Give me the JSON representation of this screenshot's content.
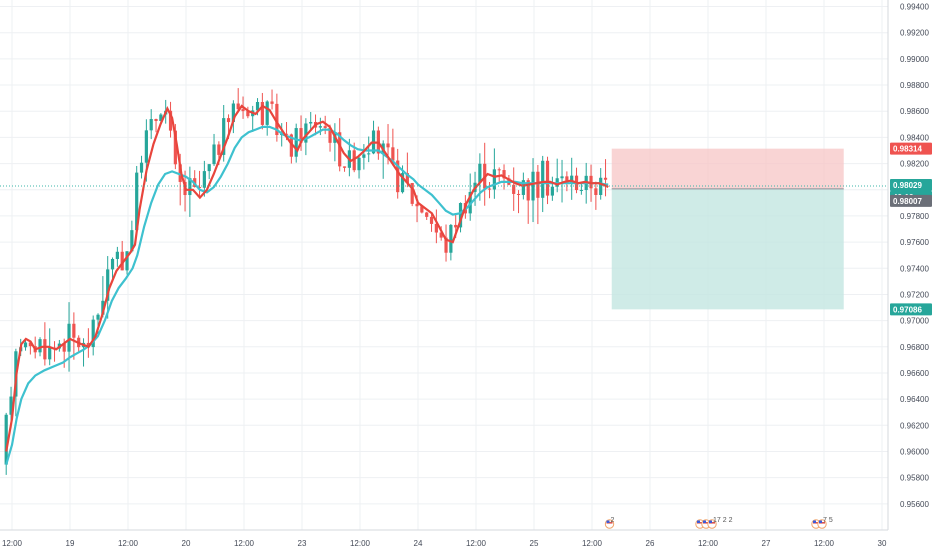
{
  "chart_data": {
    "type": "candlestick",
    "price_range": [
      0.954,
      0.9945
    ],
    "y_ticks": [
      "0.99400",
      "0.99200",
      "0.99000",
      "0.98800",
      "0.98600",
      "0.98400",
      "0.98200",
      "0.98000",
      "0.97800",
      "0.97600",
      "0.97400",
      "0.97200",
      "0.97000",
      "0.96800",
      "0.96600",
      "0.96400",
      "0.96200",
      "0.96000",
      "0.95800",
      "0.95600"
    ],
    "x_ticks": [
      {
        "label": "12:00",
        "t": -0.5
      },
      {
        "label": "19",
        "t": 0
      },
      {
        "label": "12:00",
        "t": 0.5
      },
      {
        "label": "20",
        "t": 1
      },
      {
        "label": "12:00",
        "t": 1.5
      },
      {
        "label": "23",
        "t": 2
      },
      {
        "label": "12:00",
        "t": 2.5
      },
      {
        "label": "24",
        "t": 3
      },
      {
        "label": "12:00",
        "t": 3.5
      },
      {
        "label": "25",
        "t": 4
      },
      {
        "label": "12:00",
        "t": 4.5
      },
      {
        "label": "26",
        "t": 5
      },
      {
        "label": "12:00",
        "t": 5.5
      },
      {
        "label": "27",
        "t": 6
      },
      {
        "label": "12:00",
        "t": 6.5
      },
      {
        "label": "30",
        "t": 7
      }
    ],
    "price_path": [
      [
        -0.55,
        0.959
      ],
      [
        -0.5,
        0.962
      ],
      [
        -0.45,
        0.967
      ],
      [
        -0.42,
        0.9686
      ],
      [
        -0.38,
        0.9686
      ],
      [
        -0.34,
        0.968
      ],
      [
        -0.3,
        0.9676
      ],
      [
        -0.24,
        0.9685
      ],
      [
        -0.18,
        0.968
      ],
      [
        -0.12,
        0.9676
      ],
      [
        -0.06,
        0.9684
      ],
      [
        0.0,
        0.9688
      ],
      [
        0.05,
        0.9684
      ],
      [
        0.1,
        0.9685
      ],
      [
        0.16,
        0.9678
      ],
      [
        0.22,
        0.969
      ],
      [
        0.28,
        0.9705
      ],
      [
        0.34,
        0.973
      ],
      [
        0.4,
        0.9742
      ],
      [
        0.46,
        0.9748
      ],
      [
        0.52,
        0.9752
      ],
      [
        0.56,
        0.9758
      ],
      [
        0.6,
        0.9798
      ],
      [
        0.66,
        0.983
      ],
      [
        0.72,
        0.9843
      ],
      [
        0.78,
        0.9855
      ],
      [
        0.84,
        0.9866
      ],
      [
        0.88,
        0.9855
      ],
      [
        0.92,
        0.983
      ],
      [
        0.96,
        0.981
      ],
      [
        1.0,
        0.98
      ],
      [
        1.06,
        0.98
      ],
      [
        1.12,
        0.9795
      ],
      [
        1.18,
        0.9805
      ],
      [
        1.24,
        0.9814
      ],
      [
        1.3,
        0.983
      ],
      [
        1.36,
        0.9845
      ],
      [
        1.42,
        0.986
      ],
      [
        1.48,
        0.9866
      ],
      [
        1.54,
        0.9862
      ],
      [
        1.6,
        0.986
      ],
      [
        1.66,
        0.9865
      ],
      [
        1.72,
        0.9862
      ],
      [
        1.78,
        0.9852
      ],
      [
        1.84,
        0.9846
      ],
      [
        1.9,
        0.9836
      ],
      [
        1.96,
        0.9828
      ],
      [
        2.0,
        0.984
      ],
      [
        2.06,
        0.9845
      ],
      [
        2.12,
        0.985
      ],
      [
        2.18,
        0.9852
      ],
      [
        2.24,
        0.9848
      ],
      [
        2.3,
        0.9838
      ],
      [
        2.36,
        0.9828
      ],
      [
        2.42,
        0.982
      ],
      [
        2.48,
        0.9825
      ],
      [
        2.54,
        0.983
      ],
      [
        2.6,
        0.9838
      ],
      [
        2.66,
        0.9836
      ],
      [
        2.72,
        0.9828
      ],
      [
        2.78,
        0.982
      ],
      [
        2.84,
        0.9812
      ],
      [
        2.9,
        0.9807
      ],
      [
        2.96,
        0.98
      ],
      [
        3.0,
        0.979
      ],
      [
        3.06,
        0.9786
      ],
      [
        3.12,
        0.9782
      ],
      [
        3.18,
        0.9772
      ],
      [
        3.24,
        0.976
      ],
      [
        3.3,
        0.976
      ],
      [
        3.36,
        0.9776
      ],
      [
        3.42,
        0.979
      ],
      [
        3.48,
        0.98
      ],
      [
        3.54,
        0.9808
      ],
      [
        3.6,
        0.9815
      ],
      [
        3.66,
        0.981
      ],
      [
        3.72,
        0.9812
      ],
      [
        3.78,
        0.9808
      ],
      [
        3.84,
        0.9804
      ],
      [
        3.9,
        0.9803
      ],
      [
        3.96,
        0.9805
      ],
      [
        4.02,
        0.9805
      ],
      [
        4.08,
        0.9806
      ],
      [
        4.14,
        0.9807
      ],
      [
        4.2,
        0.9803
      ],
      [
        4.26,
        0.9806
      ],
      [
        4.32,
        0.9808
      ],
      [
        4.38,
        0.9805
      ],
      [
        4.44,
        0.9806
      ],
      [
        4.5,
        0.9804
      ],
      [
        4.56,
        0.9806
      ],
      [
        4.62,
        0.9803
      ],
      [
        4.64,
        0.9802
      ]
    ],
    "ma_fast": [
      [
        -0.55,
        0.96
      ],
      [
        -0.5,
        0.9625
      ],
      [
        -0.46,
        0.966
      ],
      [
        -0.42,
        0.9682
      ],
      [
        -0.38,
        0.9686
      ],
      [
        -0.34,
        0.9684
      ],
      [
        -0.3,
        0.9678
      ],
      [
        -0.24,
        0.968
      ],
      [
        -0.18,
        0.968
      ],
      [
        -0.12,
        0.9678
      ],
      [
        -0.06,
        0.9682
      ],
      [
        0.0,
        0.9686
      ],
      [
        0.05,
        0.9684
      ],
      [
        0.1,
        0.9682
      ],
      [
        0.16,
        0.968
      ],
      [
        0.22,
        0.9688
      ],
      [
        0.28,
        0.9705
      ],
      [
        0.34,
        0.9725
      ],
      [
        0.4,
        0.9738
      ],
      [
        0.46,
        0.9745
      ],
      [
        0.52,
        0.9752
      ],
      [
        0.56,
        0.9758
      ],
      [
        0.6,
        0.9785
      ],
      [
        0.66,
        0.9815
      ],
      [
        0.72,
        0.9835
      ],
      [
        0.78,
        0.985
      ],
      [
        0.84,
        0.9862
      ],
      [
        0.88,
        0.9855
      ],
      [
        0.92,
        0.9835
      ],
      [
        0.96,
        0.9812
      ],
      [
        1.0,
        0.98
      ],
      [
        1.06,
        0.98
      ],
      [
        1.12,
        0.9794
      ],
      [
        1.18,
        0.98
      ],
      [
        1.24,
        0.9812
      ],
      [
        1.3,
        0.9826
      ],
      [
        1.36,
        0.984
      ],
      [
        1.42,
        0.9856
      ],
      [
        1.48,
        0.9864
      ],
      [
        1.54,
        0.986
      ],
      [
        1.6,
        0.9858
      ],
      [
        1.66,
        0.9864
      ],
      [
        1.72,
        0.9861
      ],
      [
        1.78,
        0.9852
      ],
      [
        1.84,
        0.9844
      ],
      [
        1.9,
        0.9836
      ],
      [
        1.96,
        0.983
      ],
      [
        2.0,
        0.9838
      ],
      [
        2.06,
        0.9844
      ],
      [
        2.12,
        0.985
      ],
      [
        2.18,
        0.9852
      ],
      [
        2.24,
        0.9848
      ],
      [
        2.3,
        0.9838
      ],
      [
        2.36,
        0.9828
      ],
      [
        2.42,
        0.9822
      ],
      [
        2.48,
        0.9825
      ],
      [
        2.54,
        0.983
      ],
      [
        2.6,
        0.9836
      ],
      [
        2.66,
        0.9836
      ],
      [
        2.72,
        0.9828
      ],
      [
        2.78,
        0.982
      ],
      [
        2.84,
        0.9812
      ],
      [
        2.9,
        0.9806
      ],
      [
        2.96,
        0.98
      ],
      [
        3.0,
        0.979
      ],
      [
        3.06,
        0.9786
      ],
      [
        3.12,
        0.9782
      ],
      [
        3.18,
        0.9772
      ],
      [
        3.24,
        0.9762
      ],
      [
        3.3,
        0.976
      ],
      [
        3.36,
        0.9775
      ],
      [
        3.42,
        0.979
      ],
      [
        3.48,
        0.98
      ],
      [
        3.54,
        0.9806
      ],
      [
        3.6,
        0.9812
      ],
      [
        3.66,
        0.981
      ],
      [
        3.72,
        0.9811
      ],
      [
        3.78,
        0.9808
      ],
      [
        3.84,
        0.9805
      ],
      [
        3.9,
        0.9803
      ],
      [
        3.96,
        0.9804
      ],
      [
        4.02,
        0.9805
      ],
      [
        4.08,
        0.9806
      ],
      [
        4.14,
        0.9806
      ],
      [
        4.2,
        0.9804
      ],
      [
        4.26,
        0.9806
      ],
      [
        4.32,
        0.9807
      ],
      [
        4.38,
        0.9805
      ],
      [
        4.44,
        0.9806
      ],
      [
        4.5,
        0.9805
      ],
      [
        4.56,
        0.9805
      ],
      [
        4.62,
        0.9803
      ],
      [
        4.64,
        0.9802
      ]
    ],
    "ma_slow": [
      [
        -0.55,
        0.959
      ],
      [
        -0.5,
        0.9605
      ],
      [
        -0.46,
        0.9625
      ],
      [
        -0.42,
        0.964
      ],
      [
        -0.36,
        0.9652
      ],
      [
        -0.3,
        0.9658
      ],
      [
        -0.22,
        0.9662
      ],
      [
        -0.14,
        0.9665
      ],
      [
        -0.06,
        0.9668
      ],
      [
        0.0,
        0.9672
      ],
      [
        0.06,
        0.9675
      ],
      [
        0.12,
        0.9678
      ],
      [
        0.18,
        0.9682
      ],
      [
        0.24,
        0.9688
      ],
      [
        0.3,
        0.97
      ],
      [
        0.36,
        0.9715
      ],
      [
        0.42,
        0.9725
      ],
      [
        0.48,
        0.9732
      ],
      [
        0.54,
        0.974
      ],
      [
        0.58,
        0.975
      ],
      [
        0.64,
        0.9772
      ],
      [
        0.7,
        0.979
      ],
      [
        0.76,
        0.9804
      ],
      [
        0.82,
        0.9812
      ],
      [
        0.88,
        0.9814
      ],
      [
        0.94,
        0.9812
      ],
      [
        1.0,
        0.981
      ],
      [
        1.06,
        0.9806
      ],
      [
        1.12,
        0.98
      ],
      [
        1.18,
        0.9798
      ],
      [
        1.24,
        0.9802
      ],
      [
        1.3,
        0.981
      ],
      [
        1.36,
        0.982
      ],
      [
        1.42,
        0.9832
      ],
      [
        1.48,
        0.984
      ],
      [
        1.54,
        0.9844
      ],
      [
        1.6,
        0.9846
      ],
      [
        1.66,
        0.9848
      ],
      [
        1.72,
        0.9848
      ],
      [
        1.78,
        0.9846
      ],
      [
        1.84,
        0.9842
      ],
      [
        1.9,
        0.984
      ],
      [
        1.96,
        0.9838
      ],
      [
        2.0,
        0.9838
      ],
      [
        2.06,
        0.984
      ],
      [
        2.12,
        0.9843
      ],
      [
        2.18,
        0.9846
      ],
      [
        2.24,
        0.9846
      ],
      [
        2.3,
        0.9843
      ],
      [
        2.36,
        0.9838
      ],
      [
        2.42,
        0.9834
      ],
      [
        2.48,
        0.9831
      ],
      [
        2.54,
        0.983
      ],
      [
        2.6,
        0.983
      ],
      [
        2.66,
        0.983
      ],
      [
        2.72,
        0.9826
      ],
      [
        2.78,
        0.9822
      ],
      [
        2.84,
        0.9817
      ],
      [
        2.9,
        0.9812
      ],
      [
        2.96,
        0.9808
      ],
      [
        3.0,
        0.9804
      ],
      [
        3.06,
        0.98
      ],
      [
        3.12,
        0.9796
      ],
      [
        3.18,
        0.979
      ],
      [
        3.24,
        0.9784
      ],
      [
        3.3,
        0.9781
      ],
      [
        3.36,
        0.9782
      ],
      [
        3.42,
        0.9786
      ],
      [
        3.48,
        0.9792
      ],
      [
        3.54,
        0.9798
      ],
      [
        3.6,
        0.9802
      ],
      [
        3.66,
        0.9804
      ],
      [
        3.72,
        0.9806
      ],
      [
        3.78,
        0.9806
      ],
      [
        3.84,
        0.9806
      ],
      [
        3.9,
        0.9805
      ],
      [
        3.96,
        0.9805
      ],
      [
        4.02,
        0.9805
      ],
      [
        4.08,
        0.9805
      ],
      [
        4.14,
        0.9805
      ],
      [
        4.2,
        0.9805
      ],
      [
        4.26,
        0.9805
      ],
      [
        4.32,
        0.9805
      ],
      [
        4.38,
        0.9805
      ],
      [
        4.44,
        0.9805
      ],
      [
        4.5,
        0.9805
      ],
      [
        4.56,
        0.9805
      ],
      [
        4.62,
        0.9804
      ],
      [
        4.64,
        0.9804
      ]
    ],
    "position": {
      "t_start": 4.67,
      "t_end": 6.67,
      "entry": 0.98007,
      "stop": 0.98314,
      "target": 0.97086
    },
    "labels": {
      "stop": "0.98314",
      "current": "0.98029",
      "countdown": "42:12",
      "entry": "0.98007",
      "target": "0.97086"
    },
    "current_price": 0.98029,
    "events": [
      {
        "t": 4.72,
        "count": "2"
      },
      {
        "t": 5.5,
        "count": "17 2 2"
      },
      {
        "t": 6.5,
        "count": "7 5"
      }
    ],
    "colors": {
      "up": "#26a69a",
      "down": "#ef5350",
      "ma_fast": "#e8453c",
      "ma_slow": "#3ec1cf",
      "stop_zone": "#f7c6c6",
      "target_zone": "#c3e6e1",
      "current_line": "#3bb6a8"
    }
  }
}
